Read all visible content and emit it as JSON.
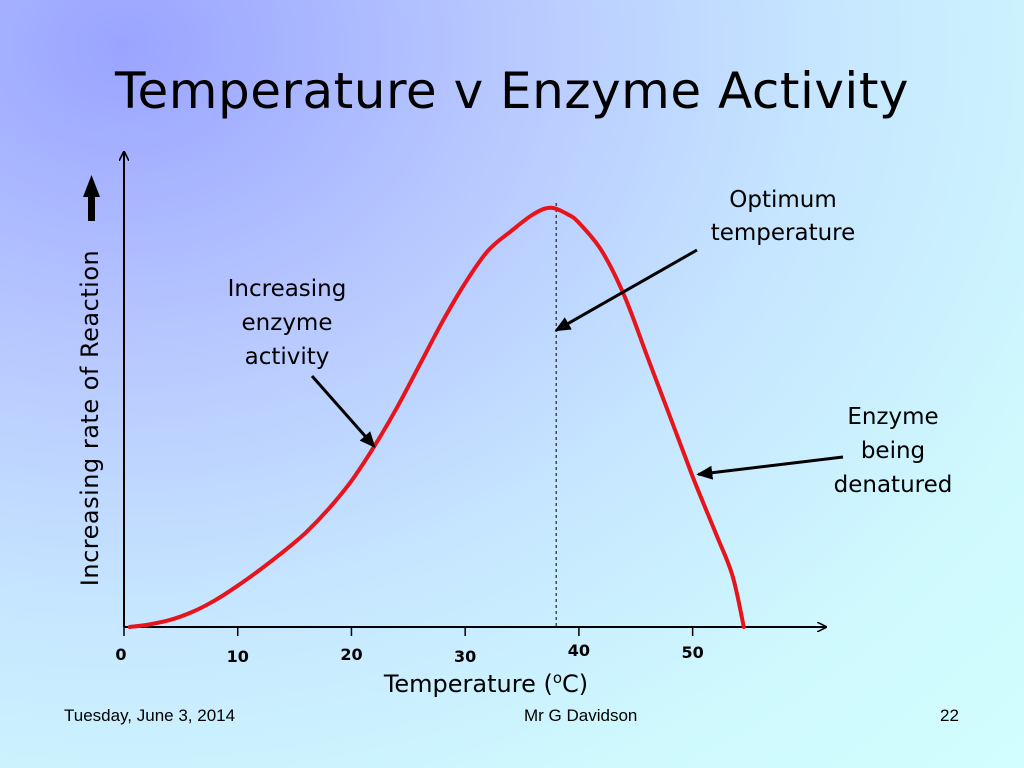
{
  "slide": {
    "title": "Temperature v Enzyme Activity",
    "footer_date": "Tuesday, June 3, 2014",
    "footer_author": "Mr G Davidson",
    "footer_page": "22"
  },
  "chart_data": {
    "type": "line",
    "title": "Temperature v Enzyme Activity",
    "xlabel": "Temperature (°C)",
    "xlabel_base": "Temperature (",
    "xlabel_sup": "o",
    "xlabel_tail": "C)",
    "ylabel": "Increasing rate of Reaction",
    "xlim": [
      0,
      55
    ],
    "ylim": [
      0,
      100
    ],
    "x_ticks": [
      0,
      10,
      20,
      30,
      40,
      50
    ],
    "grid": false,
    "y_axis_values_shown": false,
    "series": [
      {
        "color": "#e8141c",
        "points": [
          [
            0.5,
            0
          ],
          [
            2,
            0.5
          ],
          [
            4,
            1.6
          ],
          [
            6,
            3.5
          ],
          [
            8,
            6.2
          ],
          [
            10,
            9.6
          ],
          [
            12,
            13.4
          ],
          [
            14,
            17.5
          ],
          [
            16,
            22
          ],
          [
            18,
            27.5
          ],
          [
            20,
            34
          ],
          [
            22,
            42
          ],
          [
            24,
            51
          ],
          [
            26,
            61
          ],
          [
            28,
            71
          ],
          [
            30,
            80
          ],
          [
            32,
            87.5
          ],
          [
            34,
            92
          ],
          [
            36,
            96
          ],
          [
            37.5,
            97.5
          ],
          [
            39,
            96
          ],
          [
            40,
            94
          ],
          [
            42,
            87.5
          ],
          [
            44,
            77
          ],
          [
            46,
            63
          ],
          [
            48,
            49
          ],
          [
            50,
            35
          ],
          [
            52,
            22
          ],
          [
            53.5,
            12
          ],
          [
            54.5,
            0
          ]
        ]
      }
    ],
    "optimum_x": 38,
    "annotations": [
      {
        "lines": [
          "Increasing",
          "enzyme",
          "activity"
        ],
        "target": [
          22,
          42
        ]
      },
      {
        "lines": [
          "Optimum",
          "temperature"
        ],
        "target": [
          38,
          69
        ]
      },
      {
        "lines": [
          "Enzyme",
          "being",
          "denatured"
        ],
        "target": [
          50.5,
          35.5
        ]
      }
    ]
  }
}
